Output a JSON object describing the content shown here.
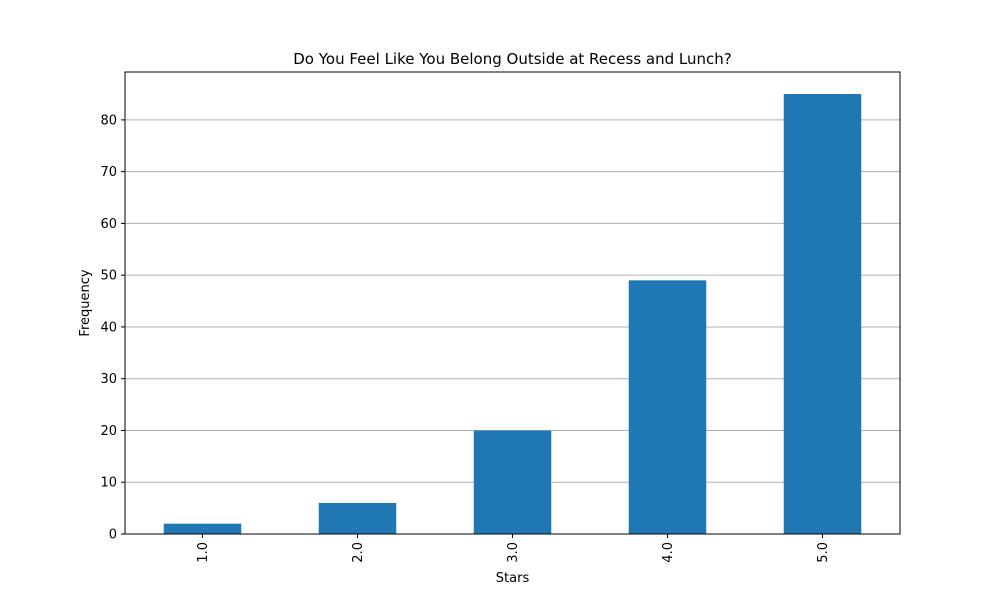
{
  "chart_data": {
    "type": "bar",
    "title": "Do You Feel Like You Belong Outside at Recess and Lunch?",
    "xlabel": "Stars",
    "ylabel": "Frequency",
    "categories": [
      "1.0",
      "2.0",
      "3.0",
      "4.0",
      "5.0"
    ],
    "values": [
      2,
      6,
      20,
      49,
      85
    ],
    "ylim": [
      0,
      89.25
    ],
    "yticks": [
      0,
      10,
      20,
      30,
      40,
      50,
      60,
      70,
      80
    ],
    "grid": "y",
    "bar_color": "#1f77b4",
    "grid_color": "#b0b0b0"
  }
}
